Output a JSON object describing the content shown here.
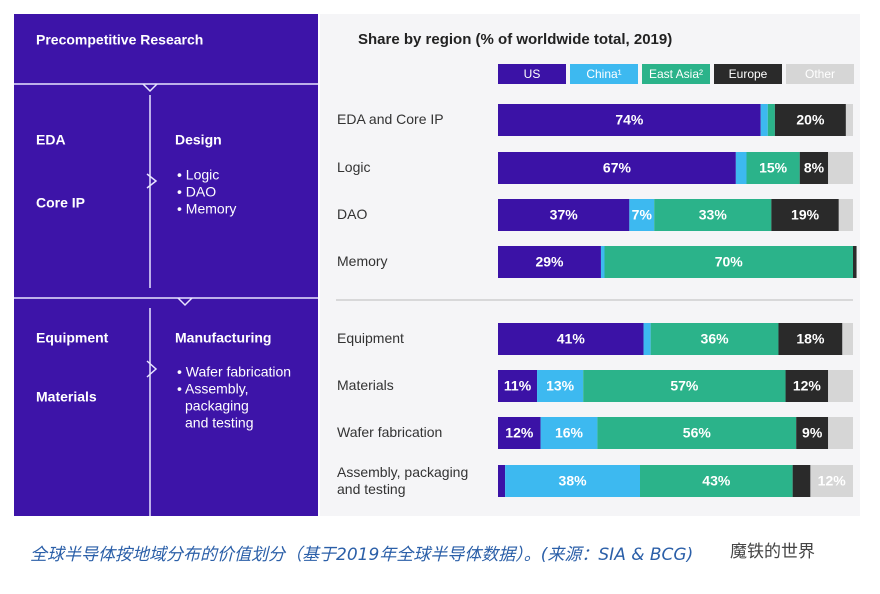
{
  "left_panel": {
    "title": "Precompetitive Research",
    "top_left": [
      "EDA",
      "Core IP"
    ],
    "top_right_title": "Design",
    "top_right_items": [
      "• Logic",
      "• DAO",
      "• Memory"
    ],
    "bottom_left": [
      "Equipment",
      "Materials"
    ],
    "bottom_right_title": "Manufacturing",
    "bottom_right_items": [
      "• Wafer fabrication",
      "• Assembly,",
      "packaging",
      "and testing"
    ]
  },
  "chart_data": {
    "type": "stacked-barh",
    "title": "Share by region (% of worldwide total, 2019)",
    "categories": [
      "EDA and Core IP",
      "Logic",
      "DAO",
      "Memory",
      "Equipment",
      "Materials",
      "Wafer fabrication",
      "Assembly, packaging|and testing"
    ],
    "xlim": [
      0,
      100
    ],
    "series": [
      {
        "name": "US",
        "color": "#3b12a6",
        "values": [
          74,
          67,
          37,
          29,
          41,
          11,
          12,
          2
        ],
        "value_labels": [
          "74%",
          "67%",
          "37%",
          "29%",
          "41%",
          "11%",
          "12%",
          null
        ]
      },
      {
        "name": "China¹",
        "color": "#3db9f0",
        "values": [
          2,
          3,
          7,
          1,
          2,
          13,
          16,
          38
        ],
        "value_labels": [
          null,
          null,
          "7%",
          null,
          null,
          "13%",
          "16%",
          "38%"
        ]
      },
      {
        "name": "East Asia²",
        "color": "#2bb38a",
        "values": [
          2,
          15,
          33,
          70,
          36,
          57,
          56,
          43
        ],
        "value_labels": [
          null,
          "15%",
          "33%",
          "70%",
          "36%",
          "57%",
          "56%",
          "43%"
        ]
      },
      {
        "name": "Europe",
        "color": "#2a2a2a",
        "values": [
          20,
          8,
          19,
          1,
          18,
          12,
          9,
          5
        ],
        "value_labels": [
          "20%",
          "8%",
          "19%",
          null,
          "18%",
          "12%",
          "9%",
          null
        ]
      },
      {
        "name": "Other",
        "color": "#d6d6d6",
        "values": [
          2,
          7,
          4,
          0,
          3,
          7,
          7,
          12
        ],
        "value_labels": [
          null,
          null,
          null,
          null,
          null,
          null,
          null,
          "12%"
        ]
      }
    ]
  },
  "caption": "全球半导体按地域分布的价值划分（基于2019年全球半导体数据）。(来源：SIA & BCG)",
  "watermark": "魔铁的世界"
}
